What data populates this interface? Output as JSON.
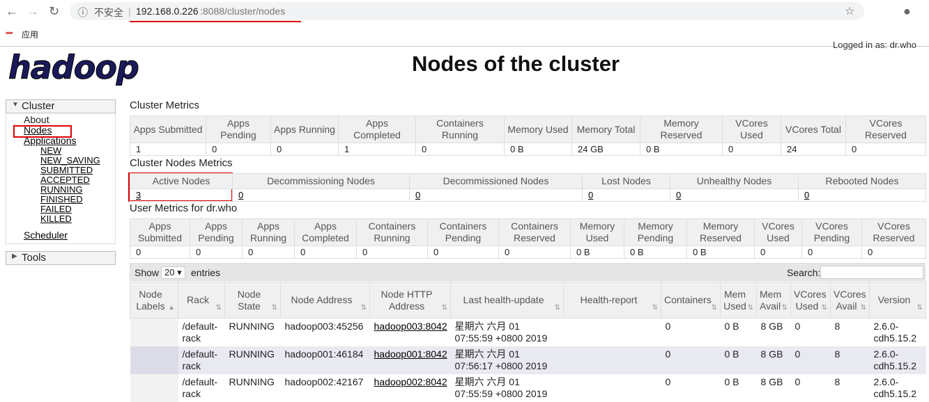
{
  "browser": {
    "insecure": "不安全",
    "url_host": "192.168.0.226",
    "url_rest": ":8088/cluster/nodes",
    "bookmark": "应用"
  },
  "header": {
    "logo": "hadoop",
    "title": "Nodes of the cluster",
    "login": "Logged in as: dr.who"
  },
  "nav": {
    "cluster": "Cluster",
    "items": [
      "About",
      "Nodes",
      "Applications"
    ],
    "app_states": [
      "NEW",
      "NEW_SAVING",
      "SUBMITTED",
      "ACCEPTED",
      "RUNNING",
      "FINISHED",
      "FAILED",
      "KILLED"
    ],
    "scheduler": "Scheduler",
    "tools": "Tools"
  },
  "cluster_metrics": {
    "title": "Cluster Metrics",
    "headers": [
      "Apps Submitted",
      "Apps Pending",
      "Apps Running",
      "Apps Completed",
      "Containers Running",
      "Memory Used",
      "Memory Total",
      "Memory Reserved",
      "VCores Used",
      "VCores Total",
      "VCores Reserved"
    ],
    "values": [
      1,
      0,
      0,
      1,
      0,
      "0 B",
      "24 GB",
      "0 B",
      0,
      24,
      0
    ]
  },
  "nodes_metrics": {
    "title": "Cluster Nodes Metrics",
    "headers": [
      "Active Nodes",
      "Decommissioning Nodes",
      "Decommissioned Nodes",
      "Lost Nodes",
      "Unhealthy Nodes",
      "Rebooted Nodes"
    ],
    "values": [
      3,
      0,
      0,
      0,
      0,
      0
    ]
  },
  "user_metrics": {
    "title": "User Metrics for dr.who",
    "headers": [
      "Apps Submitted",
      "Apps Pending",
      "Apps Running",
      "Apps Completed",
      "Containers Running",
      "Containers Pending",
      "Containers Reserved",
      "Memory Used",
      "Memory Pending",
      "Memory Reserved",
      "VCores Used",
      "VCores Pending",
      "VCores Reserved"
    ],
    "values": [
      0,
      0,
      0,
      0,
      0,
      0,
      0,
      "0 B",
      "0 B",
      "0 B",
      0,
      0,
      0
    ]
  },
  "table": {
    "show": "Show",
    "page_size": "20",
    "entries": "entries",
    "search": "Search:",
    "headers": [
      "Node Labels",
      "Rack",
      "Node State",
      "Node Address",
      "Node HTTP Address",
      "Last health-update",
      "Health-report",
      "Containers",
      "Mem Used",
      "Mem Avail",
      "VCores Used",
      "VCores Avail",
      "Version"
    ],
    "rows": [
      [
        null,
        "/default-rack",
        "RUNNING",
        "hadoop003:45256",
        "hadoop003:8042",
        "星期六 六月 01 07:55:59 +0800 2019",
        null,
        0,
        "0 B",
        "8 GB",
        0,
        8,
        "2.6.0-cdh5.15.2"
      ],
      [
        null,
        "/default-rack",
        "RUNNING",
        "hadoop001:46184",
        "hadoop001:8042",
        "星期六 六月 01 07:56:17 +0800 2019",
        null,
        0,
        "0 B",
        "8 GB",
        0,
        8,
        "2.6.0-cdh5.15.2"
      ],
      [
        null,
        "/default-rack",
        "RUNNING",
        "hadoop002:42167",
        "hadoop002:8042",
        "星期六 六月 01 07:55:59 +0800 2019",
        null,
        0,
        "0 B",
        "8 GB",
        0,
        8,
        "2.6.0-cdh5.15.2"
      ]
    ]
  }
}
